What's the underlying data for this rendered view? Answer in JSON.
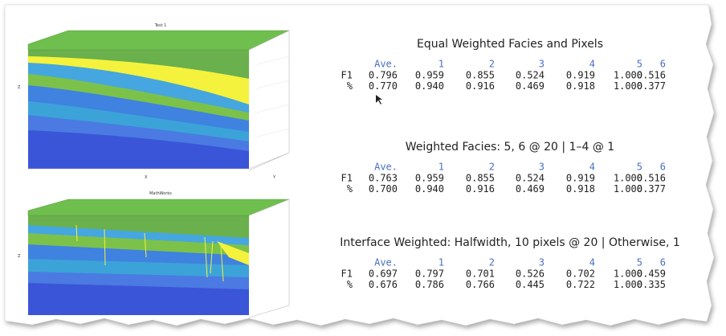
{
  "figures": [
    {
      "title": "Test 1",
      "z_label": "Z",
      "x_label": "X",
      "y_label": "Y"
    },
    {
      "title": "MathWorks",
      "z_label": "Z"
    }
  ],
  "tables": [
    {
      "title": "Equal Weighted Facies and Pixels",
      "header": [
        "Ave.",
        "1",
        "2",
        "3",
        "4",
        "5",
        "6"
      ],
      "rows": [
        {
          "label": "F1",
          "values": [
            "0.796",
            "0.959",
            "0.855",
            "0.524",
            "0.919",
            "1.000",
            "0.516"
          ]
        },
        {
          "label": "%",
          "values": [
            "0.770",
            "0.940",
            "0.916",
            "0.469",
            "0.918",
            "1.000",
            "0.377"
          ]
        }
      ]
    },
    {
      "title": "Weighted Facies: 5, 6 @ 20 | 1–4 @ 1",
      "header": [
        "Ave.",
        "1",
        "2",
        "3",
        "4",
        "5",
        "6"
      ],
      "rows": [
        {
          "label": "F1",
          "values": [
            "0.763",
            "0.959",
            "0.855",
            "0.524",
            "0.919",
            "1.000",
            "0.516"
          ]
        },
        {
          "label": "%",
          "values": [
            "0.700",
            "0.940",
            "0.916",
            "0.469",
            "0.918",
            "1.000",
            "0.377"
          ]
        }
      ]
    },
    {
      "title": "Interface Weighted: Halfwidth, 10 pixels @ 20 | Otherwise, 1",
      "header": [
        "Ave.",
        "1",
        "2",
        "3",
        "4",
        "5",
        "6"
      ],
      "rows": [
        {
          "label": "F1",
          "values": [
            "0.697",
            "0.797",
            "0.701",
            "0.526",
            "0.702",
            "1.000",
            "0.459"
          ]
        },
        {
          "label": "%",
          "values": [
            "0.676",
            "0.786",
            "0.766",
            "0.445",
            "0.722",
            "1.000",
            "0.335"
          ]
        }
      ]
    }
  ]
}
